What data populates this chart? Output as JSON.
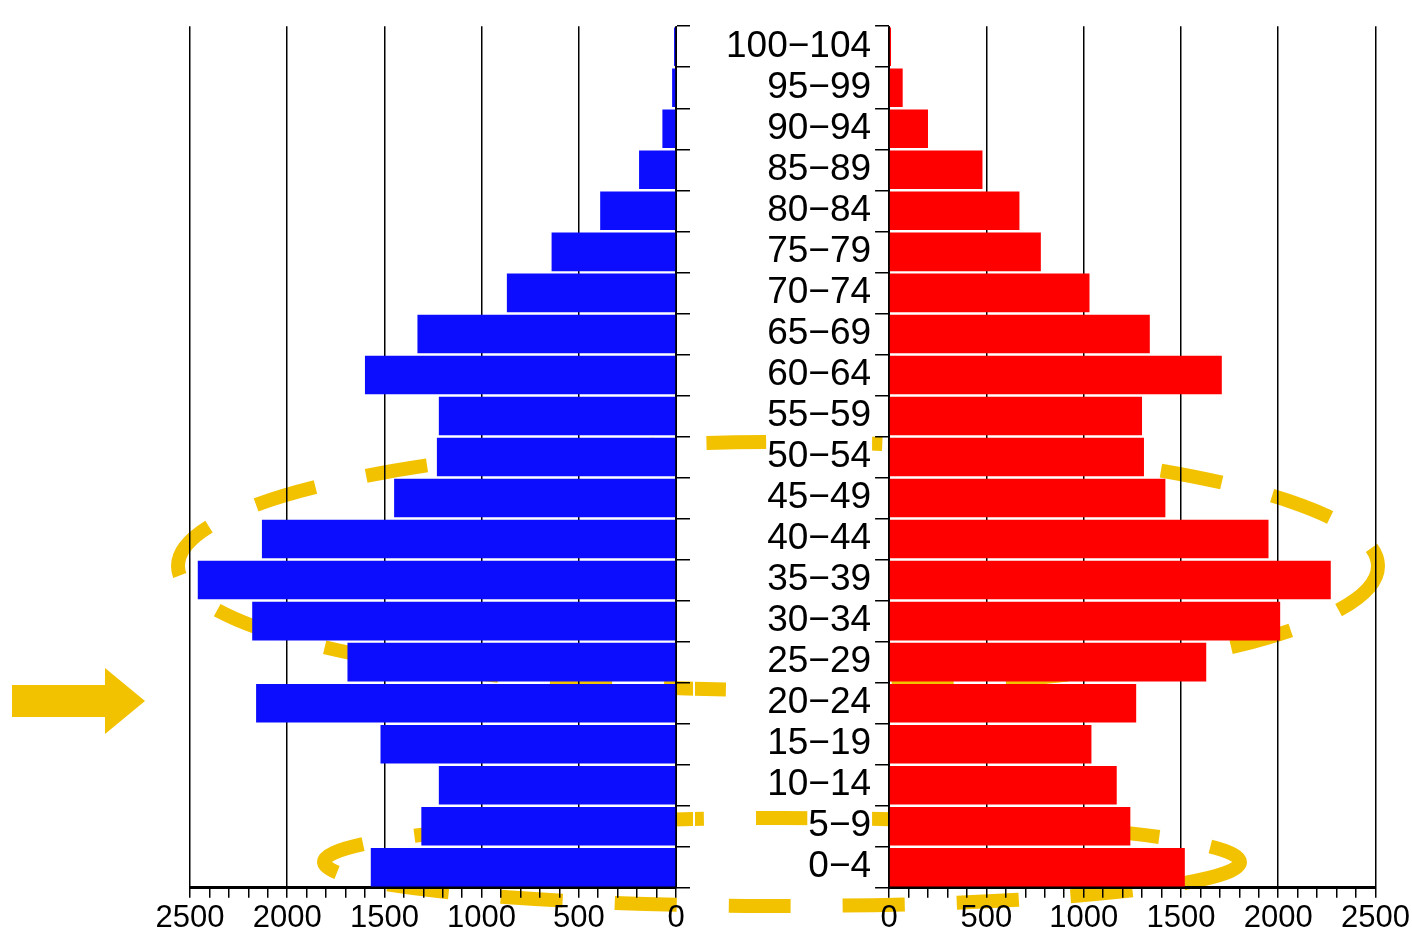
{
  "chart_data": [
    {
      "type": "bar",
      "orientation": "horizontal",
      "categories": [
        null,
        null,
        null,
        null,
        null,
        null,
        null,
        null,
        null,
        null,
        null,
        null,
        null,
        null,
        null,
        null,
        null,
        null,
        null,
        null,
        null
      ],
      "series": [
        {
          "color": "#0c0cff",
          "values": [
            10,
            20,
            70,
            190,
            390,
            640,
            870,
            1330,
            1600,
            1220,
            1230,
            1450,
            2130,
            2460,
            2180,
            1690,
            2160,
            1520,
            1220,
            1310,
            1570
          ]
        }
      ],
      "xlim": [
        2500,
        0
      ],
      "xticks": [
        2500,
        {
          "value": 2400,
          "label": null
        },
        {
          "value": 2300,
          "label": null
        },
        {
          "value": 2200,
          "label": null
        },
        {
          "value": 2100,
          "label": null
        },
        2000,
        {
          "value": 1900,
          "label": null
        },
        {
          "value": 1800,
          "label": null
        },
        {
          "value": 1700,
          "label": null
        },
        {
          "value": 1600,
          "label": null
        },
        1500,
        {
          "value": 1400,
          "label": null
        },
        {
          "value": 1300,
          "label": null
        },
        {
          "value": 1200,
          "label": null
        },
        {
          "value": 1100,
          "label": null
        },
        1000,
        {
          "value": 900,
          "label": null
        },
        {
          "value": 800,
          "label": null
        },
        {
          "value": 700,
          "label": null
        },
        {
          "value": 600,
          "label": null
        },
        500,
        {
          "value": 400,
          "label": null
        },
        {
          "value": 300,
          "label": null
        },
        {
          "value": 200,
          "label": null
        },
        {
          "value": 100,
          "label": null
        },
        0
      ],
      "grid": "x"
    },
    {
      "type": "bar",
      "orientation": "horizontal",
      "categories": [
        "100−104",
        "95−99",
        "90−94",
        "85−89",
        "80−84",
        "75−79",
        "70−74",
        "65−69",
        "60−64",
        "55−59",
        "50−54",
        "45−49",
        "40−44",
        "35−39",
        "30−34",
        "25−29",
        "20−24",
        "15−19",
        "10−14",
        "5−9",
        "0−4"
      ],
      "series": [
        {
          "color": "#ff0000",
          "values": [
            10,
            70,
            200,
            480,
            670,
            780,
            1030,
            1340,
            1710,
            1300,
            1310,
            1420,
            1950,
            2270,
            2010,
            1630,
            1270,
            1040,
            1170,
            1240,
            1520
          ]
        }
      ],
      "xlim": [
        0,
        2500
      ],
      "xticks": [
        0,
        {
          "value": 100,
          "label": null
        },
        {
          "value": 200,
          "label": null
        },
        {
          "value": 300,
          "label": null
        },
        {
          "value": 400,
          "label": null
        },
        500,
        {
          "value": 600,
          "label": null
        },
        {
          "value": 700,
          "label": null
        },
        {
          "value": 800,
          "label": null
        },
        {
          "value": 900,
          "label": null
        },
        1000,
        {
          "value": 1100,
          "label": null
        },
        {
          "value": 1200,
          "label": null
        },
        {
          "value": 1300,
          "label": null
        },
        {
          "value": 1400,
          "label": null
        },
        1500,
        {
          "value": 1600,
          "label": null
        },
        {
          "value": 1700,
          "label": null
        },
        {
          "value": 1800,
          "label": null
        },
        {
          "value": 1900,
          "label": null
        },
        2000,
        {
          "value": 2100,
          "label": null
        },
        {
          "value": 2200,
          "label": null
        },
        {
          "value": 2300,
          "label": null
        },
        {
          "value": 2400,
          "label": null
        },
        2500
      ],
      "grid": "x"
    }
  ]
}
